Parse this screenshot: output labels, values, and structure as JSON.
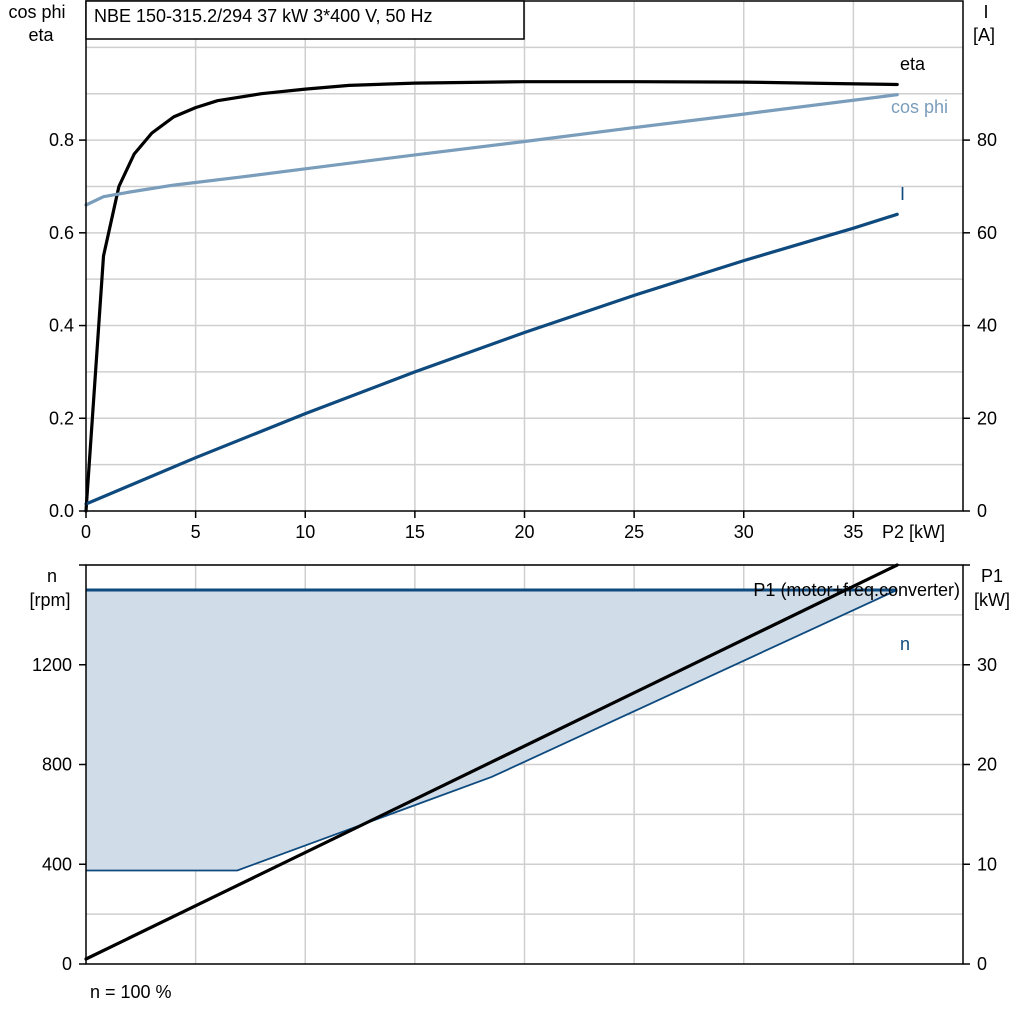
{
  "title": "NBE 150-315.2/294   37 kW   3*400 V, 50 Hz",
  "footer": "n = 100 %",
  "colors": {
    "eta": "#000000",
    "cos_phi": "#7a9dbb",
    "current": "#0f4a7e",
    "speed": "#0f4a7e",
    "speed_fill": "#d0dce8",
    "p1": "#000000",
    "grid": "#cfcfcf"
  },
  "chart_data": [
    {
      "type": "line",
      "xlabel": "P2 [kW]",
      "ylabel_left": [
        "cos phi",
        "eta"
      ],
      "ylabel_right": [
        "I",
        "[A]"
      ],
      "xlim": [
        0,
        40
      ],
      "ylim_left": [
        0,
        1.1
      ],
      "ylim_right": [
        0,
        110
      ],
      "x_ticks": [
        0,
        5,
        10,
        15,
        20,
        25,
        30,
        35
      ],
      "x_tick_labels": [
        "0",
        "5",
        "10",
        "15",
        "20",
        "25",
        "30",
        "35"
      ],
      "y_left_ticks": [
        0,
        0.2,
        0.4,
        0.6,
        0.8
      ],
      "y_left_tick_labels": [
        "0.0",
        "0.2",
        "0.4",
        "0.6",
        "0.8"
      ],
      "y_right_ticks": [
        0,
        20,
        40,
        60,
        80
      ],
      "y_right_tick_labels": [
        "0",
        "20",
        "40",
        "60",
        "80"
      ],
      "grid": true,
      "series": [
        {
          "name": "eta",
          "axis": "left",
          "x": [
            0,
            0.8,
            1.5,
            2.2,
            3,
            4,
            5,
            6,
            8,
            10,
            12,
            15,
            20,
            25,
            30,
            34,
            37
          ],
          "y": [
            0,
            0.55,
            0.7,
            0.77,
            0.815,
            0.85,
            0.87,
            0.885,
            0.9,
            0.91,
            0.918,
            0.923,
            0.926,
            0.926,
            0.925,
            0.922,
            0.92
          ]
        },
        {
          "name": "cos phi",
          "axis": "left",
          "x": [
            0,
            0.8,
            2,
            4,
            7,
            10,
            15,
            20,
            25,
            30,
            37
          ],
          "y": [
            0.66,
            0.678,
            0.688,
            0.703,
            0.72,
            0.738,
            0.768,
            0.797,
            0.827,
            0.856,
            0.898
          ]
        },
        {
          "name": "I",
          "axis": "right",
          "x": [
            0,
            2,
            5,
            10,
            15,
            20,
            25,
            30,
            35,
            37
          ],
          "y": [
            1.5,
            5.5,
            11.5,
            21,
            30,
            38.5,
            46.5,
            54,
            61,
            64
          ]
        }
      ]
    },
    {
      "type": "area",
      "xlabel": "",
      "ylabel_left": [
        "n",
        "[rpm]"
      ],
      "ylabel_right": [
        "P1",
        "[kW]"
      ],
      "xlim": [
        0,
        40
      ],
      "ylim_left": [
        0,
        1600
      ],
      "ylim_right": [
        0,
        40
      ],
      "x_ticks": [
        0,
        5,
        10,
        15,
        20,
        25,
        30,
        35
      ],
      "y_left_ticks": [
        0,
        400,
        800,
        1200
      ],
      "y_left_tick_labels": [
        "0",
        "400",
        "800",
        "1200"
      ],
      "y_right_ticks": [
        0,
        10,
        20,
        30
      ],
      "y_right_tick_labels": [
        "0",
        "10",
        "20",
        "30"
      ],
      "grid": true,
      "annotation": "P1 (motor+freq.converter)",
      "series": [
        {
          "name": "n",
          "axis": "left",
          "role": "speed range",
          "upper_x": [
            0,
            37
          ],
          "upper_y": [
            1500,
            1500
          ],
          "lower_x": [
            0,
            6.9,
            18.5,
            37
          ],
          "lower_y": [
            375,
            375,
            750,
            1500
          ]
        },
        {
          "name": "P1",
          "axis": "right",
          "x": [
            0,
            37
          ],
          "y": [
            0.5,
            40
          ]
        }
      ]
    }
  ]
}
